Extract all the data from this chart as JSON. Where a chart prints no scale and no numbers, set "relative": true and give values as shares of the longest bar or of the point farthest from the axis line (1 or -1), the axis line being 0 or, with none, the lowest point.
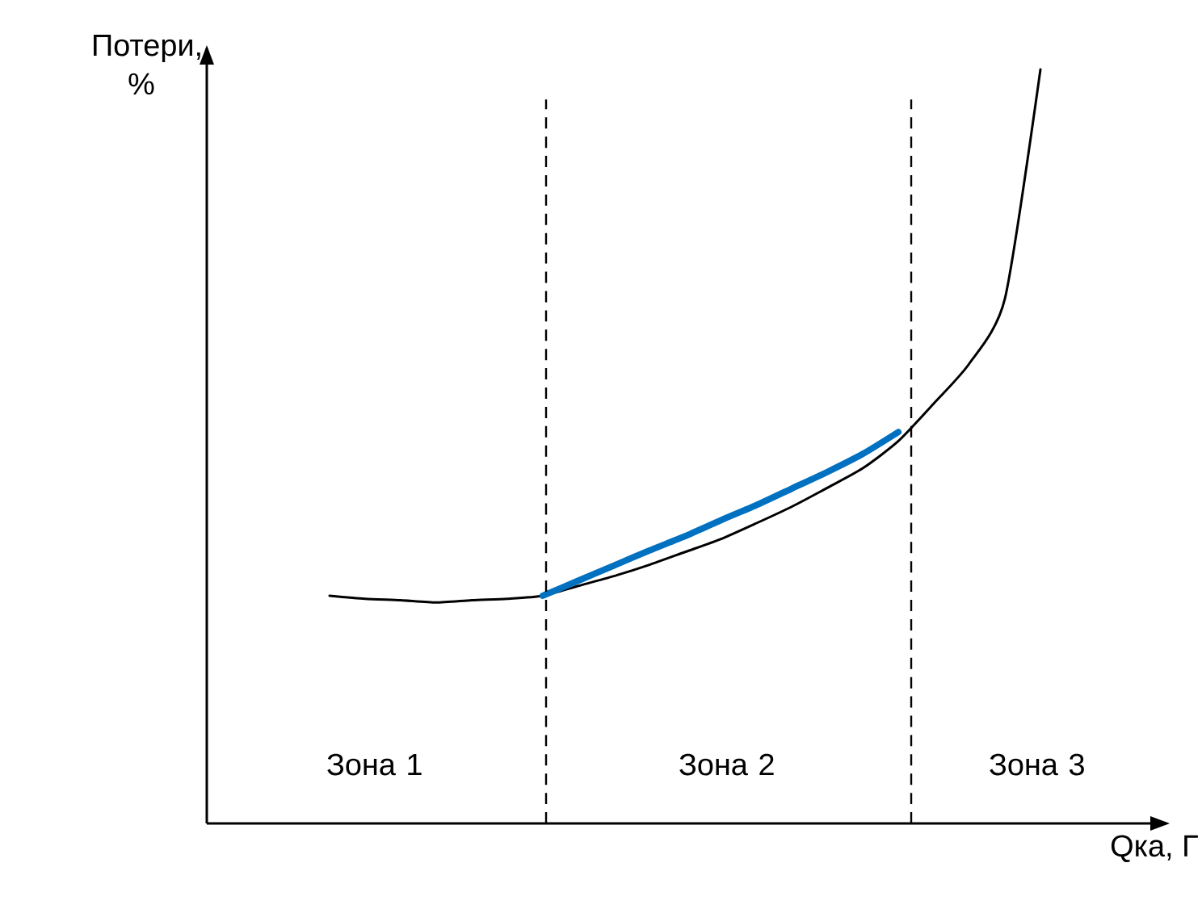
{
  "chart_data": {
    "type": "line",
    "relative": true,
    "ylabel": "Потери, %",
    "xlabel": "Qка, Г",
    "categories": [
      null,
      null,
      null,
      null,
      null,
      null,
      null,
      null,
      null,
      null,
      null,
      null,
      null,
      null,
      null,
      null,
      null,
      null,
      null,
      null,
      null
    ],
    "series": [
      {
        "color": "#000000",
        "values": [
          0.302,
          0.298,
          0.296,
          0.293,
          0.296,
          0.298,
          0.302,
          0.315,
          0.328,
          0.343,
          0.36,
          0.377,
          0.398,
          0.42,
          0.445,
          0.471,
          0.507,
          0.557,
          0.61,
          0.696,
          1
        ]
      },
      {
        "color": "#0070c0",
        "values": [
          null,
          null,
          null,
          null,
          null,
          null,
          0.302,
          0.322,
          0.342,
          0.362,
          0.381,
          0.402,
          0.422,
          0.444,
          0.466,
          0.49,
          0.519,
          null,
          null,
          null,
          null
        ]
      }
    ],
    "annotations": [
      "Зона 1",
      "Зона 2",
      "Зона 3"
    ]
  }
}
